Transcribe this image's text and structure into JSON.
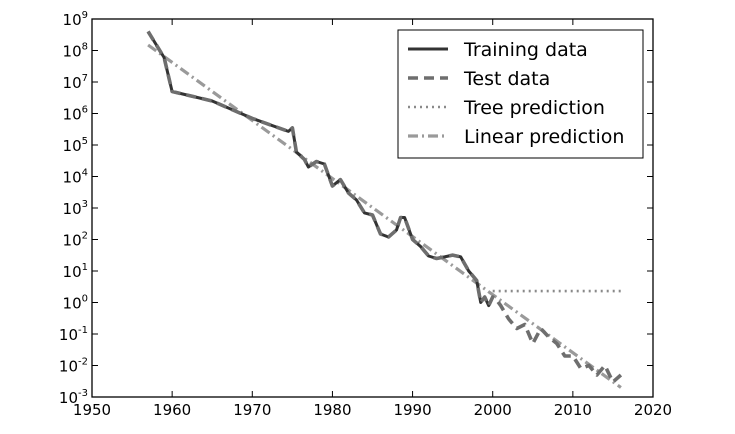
{
  "chart_data": {
    "type": "line",
    "title": "",
    "xlabel": "",
    "ylabel": "",
    "xlim": [
      1950,
      2020
    ],
    "ylim": [
      0.001,
      1000000000
    ],
    "yscale": "log",
    "grid": false,
    "legend_position": "top-right",
    "x_ticks": [
      "1950",
      "1960",
      "1970",
      "1980",
      "1990",
      "2000",
      "2010",
      "2020"
    ],
    "y_ticks": [
      {
        "base": "10",
        "exp": "-3",
        "value": 0.001
      },
      {
        "base": "10",
        "exp": "-2",
        "value": 0.01
      },
      {
        "base": "10",
        "exp": "-1",
        "value": 0.1
      },
      {
        "base": "10",
        "exp": "0",
        "value": 1
      },
      {
        "base": "10",
        "exp": "1",
        "value": 10
      },
      {
        "base": "10",
        "exp": "2",
        "value": 100
      },
      {
        "base": "10",
        "exp": "3",
        "value": 1000
      },
      {
        "base": "10",
        "exp": "4",
        "value": 10000
      },
      {
        "base": "10",
        "exp": "5",
        "value": 100000
      },
      {
        "base": "10",
        "exp": "6",
        "value": 1000000
      },
      {
        "base": "10",
        "exp": "7",
        "value": 10000000
      },
      {
        "base": "10",
        "exp": "8",
        "value": 100000000
      },
      {
        "base": "10",
        "exp": "9",
        "value": 1000000000
      }
    ],
    "series": [
      {
        "name": "Training data",
        "style": "solid",
        "color": "#333333",
        "x": [
          1957,
          1959,
          1960,
          1965,
          1970,
          1974.5,
          1975,
          1975.5,
          1976.5,
          1977,
          1978,
          1979,
          1980,
          1981,
          1982,
          1983,
          1984,
          1985,
          1986,
          1987,
          1988,
          1988.5,
          1989,
          1990,
          1991,
          1992,
          1993,
          1994,
          1995,
          1996,
          1997,
          1998,
          1998.5,
          1999,
          1999.5,
          2000
        ],
        "y": [
          400000000,
          60000000,
          5000000,
          2500000,
          700000,
          270000,
          350000,
          60000,
          35000,
          20000,
          30000,
          25000,
          5000,
          8000,
          3000,
          1800,
          700,
          600,
          150,
          120,
          200,
          500,
          500,
          100,
          60,
          30,
          25,
          28,
          32,
          28,
          10,
          5,
          1,
          1.5,
          0.8,
          1.5
        ]
      },
      {
        "name": "Test data",
        "style": "dashed",
        "color": "#6e6e6e",
        "x": [
          1957,
          1959,
          1960,
          1965,
          1970,
          1974.5,
          1975,
          1975.5,
          1976.5,
          1977,
          1978,
          1979,
          1980,
          1981,
          1982,
          1983,
          1984,
          1985,
          1986,
          1987,
          1988,
          1988.5,
          1989,
          1990,
          1991,
          1992,
          1993,
          1994,
          1995,
          1996,
          1997,
          1998,
          1998.5,
          1999,
          1999.5,
          2000,
          2000.5,
          2001,
          2002,
          2003,
          2004,
          2005,
          2006,
          2007,
          2008,
          2009,
          2010,
          2011,
          2012,
          2013,
          2014,
          2015,
          2016
        ],
        "y": [
          400000000,
          60000000,
          5000000,
          2500000,
          700000,
          270000,
          350000,
          60000,
          35000,
          20000,
          30000,
          25000,
          5000,
          8000,
          3000,
          1800,
          700,
          600,
          150,
          120,
          200,
          500,
          500,
          100,
          60,
          30,
          25,
          28,
          32,
          28,
          10,
          5,
          1,
          1.5,
          0.8,
          1.5,
          1.2,
          0.8,
          0.3,
          0.15,
          0.2,
          0.05,
          0.15,
          0.08,
          0.05,
          0.02,
          0.02,
          0.008,
          0.01,
          0.005,
          0.01,
          0.003,
          0.005
        ]
      },
      {
        "name": "Tree prediction",
        "style": "dotted",
        "color": "#8a8a8a",
        "x": [
          2000,
          2016
        ],
        "y": [
          2.3,
          2.3
        ]
      },
      {
        "name": "Linear prediction",
        "style": "dashdot",
        "color": "#9a9a9a",
        "x": [
          1957,
          2016
        ],
        "y": [
          150000000,
          0.002
        ]
      }
    ]
  }
}
